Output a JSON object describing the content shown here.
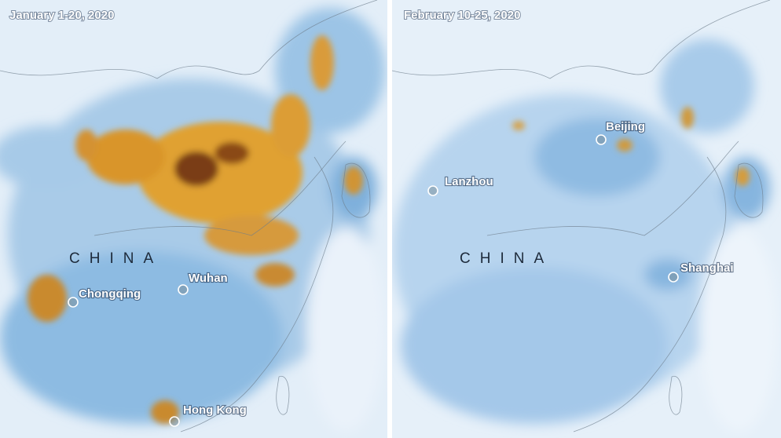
{
  "panels": [
    {
      "title": "January 1-20, 2020",
      "country": "CHINA",
      "cities": [
        {
          "name": "Chongqing"
        },
        {
          "name": "Wuhan"
        },
        {
          "name": "Hong Kong"
        }
      ]
    },
    {
      "title": "February 10-25, 2020",
      "country": "CHINA",
      "cities": [
        {
          "name": "Beijing"
        },
        {
          "name": "Lanzhou"
        },
        {
          "name": "Shanghai"
        }
      ]
    }
  ]
}
